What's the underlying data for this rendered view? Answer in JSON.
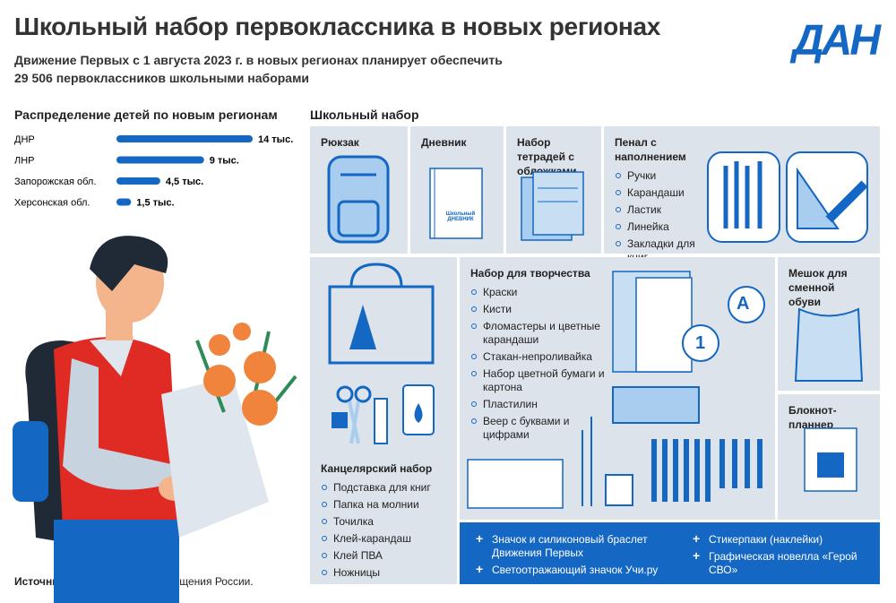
{
  "header": {
    "title": "Школьный набор первоклассника в новых регионах",
    "subtitle": [
      "Движение Первых с 1 августа 2023 г. в новых регионах планирует обеспечить",
      "29 506 первоклассников школьными наборами"
    ],
    "logo": "ДАН"
  },
  "chart_data": {
    "type": "bar",
    "orientation": "horizontal",
    "title": "Распределение детей по новым регионам",
    "categories": [
      "ДНР",
      "ЛНР",
      "Запорожская обл.",
      "Херсонская обл."
    ],
    "values": [
      14,
      9,
      4.5,
      1.5
    ],
    "value_labels": [
      "14 тыс.",
      "9 тыс.",
      "4,5 тыс.",
      "1,5 тыс."
    ],
    "color": "#1467c2"
  },
  "kit": {
    "title": "Школьный набор",
    "cells": [
      {
        "title": "Рюкзак"
      },
      {
        "title": "Дневник",
        "cover": "Школьный ДНЕВНИК"
      },
      {
        "title": "Набор тетрадей с обложками"
      },
      {
        "title": "Пенал с наполнением",
        "items": [
          "Ручки",
          "Карандаши",
          "Ластик",
          "Линейка",
          "Закладки для книг"
        ]
      },
      {
        "title": "Канцелярский набор",
        "items": [
          "Подставка для книг",
          "Папка на молнии",
          "Точилка",
          "Клей-карандаш",
          "Клей ПВА",
          "Ножницы"
        ]
      },
      {
        "title": "Набор для творчества",
        "items": [
          "Краски",
          "Кисти",
          "Фломастеры и цветные карандаши",
          "Стакан-непроливайка",
          "Набор цветной бумаги и картона",
          "Пластилин",
          "Веер с буквами и цифрами"
        ],
        "fan_labels": [
          "А",
          "1"
        ]
      },
      {
        "title": "Мешок для сменной обуви"
      },
      {
        "title": "Блокнот-планнер"
      }
    ],
    "extras": [
      "Значок и силиконовый браслет Движения Первых",
      "Светоотражающий значок Учи.ру",
      "Стикерпаки (наклейки)",
      "Графическая новелла «Герой СВО»"
    ]
  },
  "source": {
    "label": "Источник:",
    "text": "Министерство просвещения России."
  }
}
